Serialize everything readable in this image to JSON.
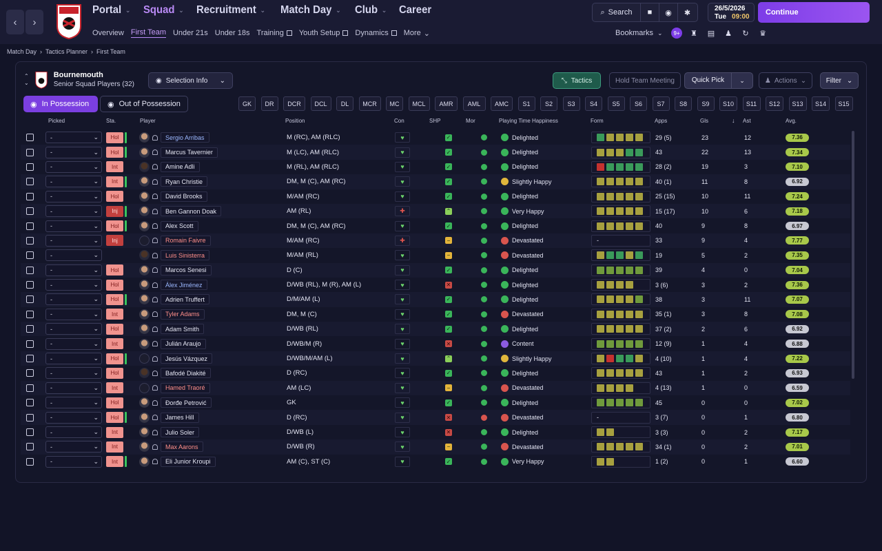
{
  "nav": {
    "main": [
      {
        "label": "Portal",
        "active": false
      },
      {
        "label": "Squad",
        "active": true
      },
      {
        "label": "Recruitment",
        "active": false
      },
      {
        "label": "Match Day",
        "active": false
      },
      {
        "label": "Club",
        "active": false
      },
      {
        "label": "Career",
        "active": false
      }
    ],
    "sub": [
      {
        "label": "Overview",
        "ext": false,
        "active": false
      },
      {
        "label": "First Team",
        "ext": false,
        "active": true
      },
      {
        "label": "Under 21s",
        "ext": false,
        "active": false
      },
      {
        "label": "Under 18s",
        "ext": false,
        "active": false
      },
      {
        "label": "Training",
        "ext": true,
        "active": false
      },
      {
        "label": "Youth Setup",
        "ext": true,
        "active": false
      },
      {
        "label": "Dynamics",
        "ext": true,
        "active": false
      },
      {
        "label": "More",
        "ext": false,
        "active": false
      }
    ]
  },
  "toolbar": {
    "search": "Search",
    "date": "26/5/2026",
    "day": "Tue",
    "time": "09:00",
    "continue": "Continue",
    "bookmarks": "Bookmarks",
    "notif": "9+"
  },
  "breadcrumb": [
    "Match Day",
    "Tactics Planner",
    "First Team"
  ],
  "team": {
    "name": "Bournemouth",
    "subtitle": "Senior Squad Players (32)"
  },
  "buttons": {
    "selection_info": "Selection Info",
    "tactics": "Tactics",
    "hold_meeting": "Hold Team Meeting",
    "quick_pick": "Quick Pick",
    "actions": "Actions",
    "filter": "Filter",
    "in_possession": "In Possession",
    "out_possession": "Out of Possession"
  },
  "positions": [
    "GK",
    "DR",
    "DCR",
    "DCL",
    "DL",
    "MCR",
    "MC",
    "MCL",
    "AMR",
    "AML",
    "AMC",
    "S1",
    "S2",
    "S3",
    "S4",
    "S5",
    "S6",
    "S7",
    "S8",
    "S9",
    "S10",
    "S11",
    "S12",
    "S13",
    "S14",
    "S15"
  ],
  "columns": {
    "picked": "Picked",
    "sta": "Sta.",
    "player": "Player",
    "position": "Position",
    "con": "Con",
    "shp": "SHP",
    "mor": "Mor",
    "ptime": "Playing Time Happiness",
    "form": "Form",
    "apps": "Apps",
    "gls": "Gls",
    "ast": "Ast",
    "avg": "Avg."
  },
  "colors": {
    "accent": "#7b3fe0",
    "positive": "#3ab55a",
    "negative": "#d9554e",
    "rating_good": "#a8c84a"
  },
  "players": [
    {
      "name": "Sergio Arribas",
      "color": "blue",
      "sta": "Hol",
      "bar": true,
      "face": "light",
      "pos": "M (RC), AM (RLC)",
      "shp": "ok",
      "mor": "ok",
      "hap": "Delighted",
      "hic": "ok",
      "form": "goooo",
      "apps": "29 (5)",
      "gls": "23",
      "ast": "12",
      "avg": "7.36",
      "ag": "g"
    },
    {
      "name": "Marcus Tavernier",
      "color": "white",
      "sta": "Hol",
      "bar": true,
      "face": "light",
      "pos": "M (LC), AM (RLC)",
      "shp": "ok",
      "mor": "ok",
      "hap": "Delighted",
      "hic": "ok",
      "form": "ooogg",
      "apps": "43",
      "gls": "22",
      "ast": "13",
      "avg": "7.34",
      "ag": "g"
    },
    {
      "name": "Amine Adli",
      "color": "white",
      "sta": "Int",
      "bar": false,
      "face": "dark",
      "pos": "M (RL), AM (RLC)",
      "shp": "ok",
      "mor": "ok",
      "hap": "Delighted",
      "hic": "ok",
      "form": "rgggg",
      "apps": "28 (2)",
      "gls": "19",
      "ast": "3",
      "avg": "7.10",
      "ag": "g"
    },
    {
      "name": "Ryan Christie",
      "color": "white",
      "sta": "Int",
      "bar": true,
      "face": "light",
      "pos": "DM, M (C), AM (RC)",
      "shp": "ok",
      "mor": "ok",
      "hap": "Slightly Happy",
      "hic": "yel",
      "form": "ooooo",
      "apps": "40 (1)",
      "gls": "11",
      "ast": "8",
      "avg": "6.92",
      "ag": "n"
    },
    {
      "name": "David Brooks",
      "color": "white",
      "sta": "Hol",
      "bar": false,
      "face": "light",
      "pos": "M/AM (RC)",
      "shp": "ok",
      "mor": "ok",
      "hap": "Delighted",
      "hic": "ok",
      "form": "ooooo",
      "apps": "25 (15)",
      "gls": "10",
      "ast": "11",
      "avg": "7.24",
      "ag": "g"
    },
    {
      "name": "Ben Gannon Doak",
      "color": "white",
      "sta": "Inj",
      "bar": true,
      "face": "light",
      "pos": "AM (RL)",
      "shp": "up",
      "mor": "ok",
      "hap": "Very Happy",
      "hic": "ok",
      "form": "ooooo",
      "apps": "15 (17)",
      "gls": "10",
      "ast": "6",
      "avg": "7.18",
      "ag": "g"
    },
    {
      "name": "Alex Scott",
      "color": "white",
      "sta": "Hol",
      "bar": true,
      "face": "light",
      "pos": "DM, M (C), AM (RC)",
      "shp": "ok",
      "mor": "ok",
      "hap": "Delighted",
      "hic": "ok",
      "form": "ooooo",
      "apps": "40",
      "gls": "9",
      "ast": "8",
      "avg": "6.97",
      "ag": "n"
    },
    {
      "name": "Romain Faivre",
      "color": "red",
      "sta": "Inj",
      "bar": false,
      "face": "sil",
      "pos": "M/AM (RC)",
      "shp": "mid",
      "mor": "ok",
      "hap": "Devastated",
      "hic": "sad",
      "form": "-",
      "apps": "33",
      "gls": "9",
      "ast": "4",
      "avg": "7.77",
      "ag": "g"
    },
    {
      "name": "Luis Sinisterra",
      "color": "red",
      "sta": "",
      "bar": false,
      "face": "dark",
      "pos": "M/AM (RL)",
      "shp": "mid",
      "mor": "ok",
      "hap": "Devastated",
      "hic": "sad",
      "form": "oggog",
      "apps": "19",
      "gls": "5",
      "ast": "2",
      "avg": "7.35",
      "ag": "g"
    },
    {
      "name": "Marcos Senesi",
      "color": "white",
      "sta": "Hol",
      "bar": false,
      "face": "light",
      "pos": "D (C)",
      "shp": "ok",
      "mor": "ok",
      "hap": "Delighted",
      "hic": "ok",
      "form": "lllll",
      "apps": "39",
      "gls": "4",
      "ast": "0",
      "avg": "7.04",
      "ag": "g"
    },
    {
      "name": "Álex Jiménez",
      "color": "blue",
      "sta": "Hol",
      "bar": false,
      "face": "light",
      "pos": "D/WB (RL), M (R), AM (L)",
      "shp": "xx",
      "mor": "ok",
      "hap": "Delighted",
      "hic": "ok",
      "form": "oooo",
      "apps": "3 (6)",
      "gls": "3",
      "ast": "2",
      "avg": "7.36",
      "ag": "g"
    },
    {
      "name": "Adrien Truffert",
      "color": "white",
      "sta": "Hol",
      "bar": true,
      "face": "light",
      "pos": "D/M/AM (L)",
      "shp": "ok",
      "mor": "ok",
      "hap": "Delighted",
      "hic": "ok",
      "form": "ooool",
      "apps": "38",
      "gls": "3",
      "ast": "11",
      "avg": "7.07",
      "ag": "g"
    },
    {
      "name": "Tyler Adams",
      "color": "red",
      "sta": "Int",
      "bar": false,
      "face": "light",
      "pos": "DM, M (C)",
      "shp": "ok",
      "mor": "ok",
      "hap": "Devastated",
      "hic": "sad",
      "form": "ooooo",
      "apps": "35 (1)",
      "gls": "3",
      "ast": "8",
      "avg": "7.08",
      "ag": "g"
    },
    {
      "name": "Adam Smith",
      "color": "white",
      "sta": "Hol",
      "bar": false,
      "face": "light",
      "pos": "D/WB (RL)",
      "shp": "ok",
      "mor": "ok",
      "hap": "Delighted",
      "hic": "ok",
      "form": "ooooo",
      "apps": "37 (2)",
      "gls": "2",
      "ast": "6",
      "avg": "6.92",
      "ag": "n"
    },
    {
      "name": "Julián Araujo",
      "color": "white",
      "sta": "Int",
      "bar": false,
      "face": "light",
      "pos": "D/WB/M (R)",
      "shp": "xx",
      "mor": "ok",
      "hap": "Content",
      "hic": "pur",
      "form": "lllll",
      "apps": "12 (9)",
      "gls": "1",
      "ast": "4",
      "avg": "6.88",
      "ag": "n"
    },
    {
      "name": "Jesús Vázquez",
      "color": "white",
      "sta": "Hol",
      "bar": true,
      "face": "sil",
      "pos": "D/WB/M/AM (L)",
      "shp": "up",
      "mor": "ok",
      "hap": "Slightly Happy",
      "hic": "yel",
      "form": "orggo",
      "apps": "4 (10)",
      "gls": "1",
      "ast": "4",
      "avg": "7.22",
      "ag": "g"
    },
    {
      "name": "Bafodé Diakité",
      "color": "white",
      "sta": "Hol",
      "bar": false,
      "face": "dark",
      "pos": "D (RC)",
      "shp": "ok",
      "mor": "ok",
      "hap": "Delighted",
      "hic": "ok",
      "form": "ooooo",
      "apps": "43",
      "gls": "1",
      "ast": "2",
      "avg": "6.93",
      "ag": "n"
    },
    {
      "name": "Hamed Traoré",
      "color": "red",
      "sta": "Int",
      "bar": false,
      "face": "sil",
      "pos": "AM (LC)",
      "shp": "mid",
      "mor": "ok",
      "hap": "Devastated",
      "hic": "sad",
      "form": "oooo",
      "apps": "4 (13)",
      "gls": "1",
      "ast": "0",
      "avg": "6.59",
      "ag": "n"
    },
    {
      "name": "Đorđe Petrović",
      "color": "white",
      "sta": "Hol",
      "bar": false,
      "face": "light",
      "pos": "GK",
      "shp": "ok",
      "mor": "ok",
      "hap": "Delighted",
      "hic": "ok",
      "form": "lllll",
      "apps": "45",
      "gls": "0",
      "ast": "0",
      "avg": "7.02",
      "ag": "g"
    },
    {
      "name": "James Hill",
      "color": "white",
      "sta": "Hol",
      "bar": true,
      "face": "light",
      "pos": "D (RC)",
      "shp": "xx",
      "mor": "red",
      "hap": "Devastated",
      "hic": "sad",
      "form": "-",
      "apps": "3 (7)",
      "gls": "0",
      "ast": "1",
      "avg": "6.80",
      "ag": "n"
    },
    {
      "name": "Julio Soler",
      "color": "white",
      "sta": "Int",
      "bar": false,
      "face": "light",
      "pos": "D/WB (L)",
      "shp": "xx",
      "mor": "ok",
      "hap": "Delighted",
      "hic": "ok",
      "form": "oo",
      "apps": "3 (3)",
      "gls": "0",
      "ast": "2",
      "avg": "7.17",
      "ag": "g"
    },
    {
      "name": "Max Aarons",
      "color": "red",
      "sta": "Int",
      "bar": false,
      "face": "light",
      "pos": "D/WB (R)",
      "shp": "mid",
      "mor": "ok",
      "hap": "Devastated",
      "hic": "sad",
      "form": "ooooo",
      "apps": "34 (1)",
      "gls": "0",
      "ast": "2",
      "avg": "7.01",
      "ag": "g"
    },
    {
      "name": "Eli Junior Kroupi",
      "color": "white",
      "sta": "Int",
      "bar": true,
      "face": "light",
      "pos": "AM (C), ST (C)",
      "shp": "ok",
      "mor": "ok",
      "hap": "Very Happy",
      "hic": "ok",
      "form": "oo",
      "apps": "1 (2)",
      "gls": "0",
      "ast": "1",
      "avg": "6.60",
      "ag": "n"
    }
  ]
}
